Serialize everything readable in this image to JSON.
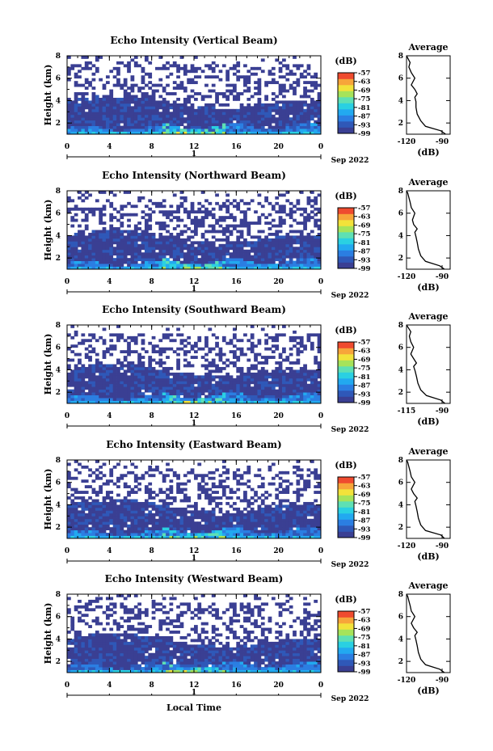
{
  "figure": {
    "x_label": "Local Time",
    "date_label": "Sep 2022"
  },
  "chart_data": [
    {
      "type": "heatmap",
      "title": "Echo Intensity (Vertical Beam)",
      "ylabel": "Height (km)",
      "xlabel": "",
      "x_ticks": [
        "0",
        "4",
        "8",
        "12",
        "16",
        "20",
        "0"
      ],
      "day_label": "1",
      "y_ticks": [
        "2",
        "4",
        "6",
        "8"
      ],
      "xlim": [
        0,
        24
      ],
      "ylim": [
        1,
        8
      ],
      "colorbar": {
        "unit": "(dB)",
        "ticks": [
          "-57",
          "-63",
          "-69",
          "-75",
          "-81",
          "-87",
          "-93",
          "-99"
        ],
        "range": [
          -99,
          -57
        ]
      },
      "profile": {
        "title": "Average",
        "xlabel": "(dB)",
        "x_ticks": [
          "-120",
          "-90"
        ],
        "xlim": [
          -120,
          -90
        ],
        "y_ticks": [
          "2",
          "4",
          "6",
          "8"
        ],
        "ylim": [
          1,
          8
        ],
        "x": [
          -87,
          -91,
          -104,
          -108,
          -111,
          -112,
          -112,
          -113,
          -111,
          -113,
          -116,
          -113,
          -116,
          -118,
          -117,
          -119,
          -120
        ],
        "y": [
          1.0,
          1.3,
          1.7,
          2.2,
          2.8,
          3.4,
          3.9,
          4.3,
          4.6,
          5.0,
          5.4,
          6.0,
          6.5,
          7.0,
          7.4,
          7.8,
          8.0
        ]
      }
    },
    {
      "type": "heatmap",
      "title": "Echo Intensity (Northward Beam)",
      "ylabel": "Height (km)",
      "xlabel": "",
      "x_ticks": [
        "0",
        "4",
        "8",
        "12",
        "16",
        "20",
        "0"
      ],
      "day_label": "1",
      "y_ticks": [
        "2",
        "4",
        "6",
        "8"
      ],
      "xlim": [
        0,
        24
      ],
      "ylim": [
        1,
        8
      ],
      "colorbar": {
        "unit": "(dB)",
        "ticks": [
          "-57",
          "-63",
          "-69",
          "-75",
          "-81",
          "-87",
          "-93",
          "-99"
        ],
        "range": [
          -99,
          -57
        ]
      },
      "profile": {
        "title": "Average",
        "xlabel": "(dB)",
        "x_ticks": [
          "-120",
          "-90"
        ],
        "xlim": [
          -120,
          -90
        ],
        "y_ticks": [
          "2",
          "4",
          "6",
          "8"
        ],
        "ylim": [
          1,
          8
        ],
        "x": [
          -88,
          -92,
          -104,
          -108,
          -110,
          -111,
          -112,
          -113,
          -111,
          -114,
          -115,
          -113,
          -116,
          -117,
          -118,
          -119,
          -120
        ],
        "y": [
          1.0,
          1.3,
          1.7,
          2.2,
          2.8,
          3.4,
          3.9,
          4.3,
          4.6,
          5.0,
          5.4,
          6.0,
          6.5,
          7.0,
          7.4,
          7.8,
          8.0
        ]
      }
    },
    {
      "type": "heatmap",
      "title": "Echo Intensity (Southward Beam)",
      "ylabel": "Height (km)",
      "xlabel": "",
      "x_ticks": [
        "0",
        "4",
        "8",
        "12",
        "16",
        "20",
        "0"
      ],
      "day_label": "1",
      "y_ticks": [
        "2",
        "4",
        "6",
        "8"
      ],
      "xlim": [
        0,
        24
      ],
      "ylim": [
        1,
        8
      ],
      "colorbar": {
        "unit": "(dB)",
        "ticks": [
          "-57",
          "-63",
          "-69",
          "-75",
          "-81",
          "-87",
          "-93",
          "-99"
        ],
        "range": [
          -99,
          -57
        ]
      },
      "profile": {
        "title": "Average",
        "xlabel": "(dB)",
        "x_ticks": [
          "-115",
          "-90"
        ],
        "xlim": [
          -115,
          -90
        ],
        "y_ticks": [
          "2",
          "4",
          "6",
          "8"
        ],
        "ylim": [
          1,
          8
        ],
        "x": [
          -88,
          -91,
          -101,
          -105,
          -107,
          -108,
          -109,
          -110,
          -108,
          -110,
          -112,
          -110,
          -112,
          -113,
          -112,
          -114,
          -115
        ],
        "y": [
          1.0,
          1.3,
          1.7,
          2.2,
          2.8,
          3.4,
          3.9,
          4.3,
          4.6,
          5.0,
          5.4,
          6.0,
          6.5,
          7.0,
          7.4,
          7.8,
          8.0
        ]
      }
    },
    {
      "type": "heatmap",
      "title": "Echo Intensity (Eastward Beam)",
      "ylabel": "Height (km)",
      "xlabel": "",
      "x_ticks": [
        "0",
        "4",
        "8",
        "12",
        "16",
        "20",
        "0"
      ],
      "day_label": "1",
      "y_ticks": [
        "2",
        "4",
        "6",
        "8"
      ],
      "xlim": [
        0,
        24
      ],
      "ylim": [
        1,
        8
      ],
      "colorbar": {
        "unit": "(dB)",
        "ticks": [
          "-57",
          "-63",
          "-69",
          "-75",
          "-81",
          "-87",
          "-93",
          "-99"
        ],
        "range": [
          -99,
          -57
        ]
      },
      "profile": {
        "title": "Average",
        "xlabel": "(dB)",
        "x_ticks": [
          "-120",
          "-90"
        ],
        "xlim": [
          -120,
          -90
        ],
        "y_ticks": [
          "2",
          "4",
          "6",
          "8"
        ],
        "ylim": [
          1,
          8
        ],
        "x": [
          -88,
          -91,
          -104,
          -108,
          -110,
          -111,
          -112,
          -113,
          -111,
          -114,
          -116,
          -113,
          -116,
          -117,
          -118,
          -119,
          -120
        ],
        "y": [
          1.0,
          1.3,
          1.7,
          2.2,
          2.8,
          3.4,
          3.9,
          4.3,
          4.6,
          5.0,
          5.4,
          6.0,
          6.5,
          7.0,
          7.4,
          7.8,
          8.0
        ]
      }
    },
    {
      "type": "heatmap",
      "title": "Echo Intensity (Westward Beam)",
      "ylabel": "Height (km)",
      "xlabel": "Local Time",
      "x_ticks": [
        "0",
        "4",
        "8",
        "12",
        "16",
        "20",
        "0"
      ],
      "day_label": "1",
      "y_ticks": [
        "2",
        "4",
        "6",
        "8"
      ],
      "xlim": [
        0,
        24
      ],
      "ylim": [
        1,
        8
      ],
      "colorbar": {
        "unit": "(dB)",
        "ticks": [
          "-57",
          "-63",
          "-69",
          "-75",
          "-81",
          "-87",
          "-93",
          "-99"
        ],
        "range": [
          -99,
          -57
        ]
      },
      "profile": {
        "title": "Average",
        "xlabel": "(dB)",
        "x_ticks": [
          "-120",
          "-90"
        ],
        "xlim": [
          -120,
          -90
        ],
        "y_ticks": [
          "2",
          "4",
          "6",
          "8"
        ],
        "ylim": [
          1,
          8
        ],
        "x": [
          -88,
          -92,
          -104,
          -108,
          -110,
          -111,
          -112,
          -113,
          -111,
          -114,
          -116,
          -113,
          -116,
          -117,
          -118,
          -119,
          -120
        ],
        "y": [
          1.0,
          1.3,
          1.7,
          2.2,
          2.8,
          3.4,
          3.9,
          4.3,
          4.6,
          5.0,
          5.4,
          6.0,
          6.5,
          7.0,
          7.4,
          7.8,
          8.0
        ]
      }
    }
  ]
}
